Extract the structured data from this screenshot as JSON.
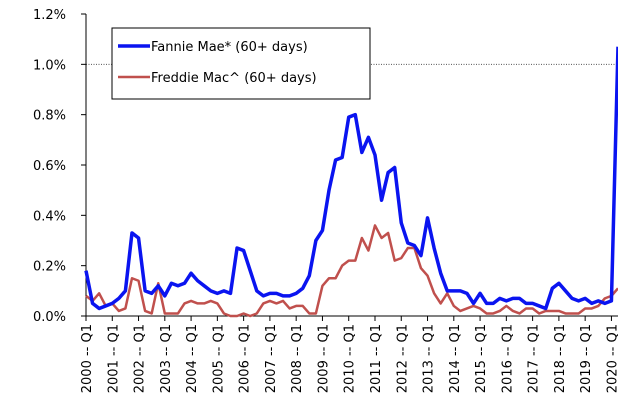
{
  "chart_data": {
    "type": "line",
    "categories": [
      "2000 -- Q1",
      null,
      null,
      null,
      "2001 -- Q1",
      null,
      null,
      null,
      "2002 -- Q1",
      null,
      null,
      null,
      "2003 -- Q1",
      null,
      null,
      null,
      "2004 -- Q1",
      null,
      null,
      null,
      "2005 -- Q1",
      null,
      null,
      null,
      "2006 -- Q1",
      null,
      null,
      null,
      "2007 -- Q1",
      null,
      null,
      null,
      "2008 -- Q1",
      null,
      null,
      null,
      "2009 -- Q1",
      null,
      null,
      null,
      "2010 -- Q1",
      null,
      null,
      null,
      "2011 -- Q1",
      null,
      null,
      null,
      "2012 -- Q1",
      null,
      null,
      null,
      "2013 -- Q1",
      null,
      null,
      null,
      "2014 -- Q1",
      null,
      null,
      null,
      "2015 -- Q1",
      null,
      null,
      null,
      "2016 -- Q1",
      null,
      null,
      null,
      "2017 -- Q1",
      null,
      null,
      null,
      "2018 -- Q1",
      null,
      null,
      null,
      "2019 -- Q1",
      null,
      null,
      null,
      "2020 -- Q1",
      null
    ],
    "series": [
      {
        "name": "Fannie Mae* (60+ days)",
        "color": "#0a14f0",
        "values": [
          0.18,
          0.05,
          0.03,
          0.04,
          0.05,
          0.07,
          0.1,
          0.33,
          0.31,
          0.1,
          0.09,
          0.12,
          0.08,
          0.13,
          0.12,
          0.13,
          0.17,
          0.14,
          0.12,
          0.1,
          0.09,
          0.1,
          0.09,
          0.27,
          0.26,
          0.18,
          0.1,
          0.08,
          0.09,
          0.09,
          0.08,
          0.08,
          0.09,
          0.11,
          0.16,
          0.3,
          0.34,
          0.5,
          0.62,
          0.63,
          0.79,
          0.8,
          0.65,
          0.71,
          0.64,
          0.46,
          0.57,
          0.59,
          0.37,
          0.29,
          0.28,
          0.24,
          0.39,
          0.27,
          0.17,
          0.1,
          0.1,
          0.1,
          0.09,
          0.05,
          0.09,
          0.05,
          0.05,
          0.07,
          0.06,
          0.07,
          0.07,
          0.05,
          0.05,
          0.04,
          0.03,
          0.11,
          0.13,
          0.1,
          0.07,
          0.06,
          0.07,
          0.05,
          0.06,
          0.05,
          0.06,
          1.07
        ]
      },
      {
        "name": "Freddie Mac^ (60+ days)",
        "color": "#c0504d",
        "values": [
          0.08,
          0.06,
          0.09,
          0.04,
          0.05,
          0.02,
          0.03,
          0.15,
          0.14,
          0.02,
          0.01,
          0.13,
          0.01,
          0.01,
          0.01,
          0.05,
          0.06,
          0.05,
          0.05,
          0.06,
          0.05,
          0.01,
          0.0,
          0.0,
          0.01,
          0.0,
          0.01,
          0.05,
          0.06,
          0.05,
          0.06,
          0.03,
          0.04,
          0.04,
          0.01,
          0.01,
          0.12,
          0.15,
          0.15,
          0.2,
          0.22,
          0.22,
          0.31,
          0.26,
          0.36,
          0.31,
          0.33,
          0.22,
          0.23,
          0.27,
          0.27,
          0.19,
          0.16,
          0.09,
          0.05,
          0.09,
          0.04,
          0.02,
          0.03,
          0.04,
          0.03,
          0.01,
          0.01,
          0.02,
          0.04,
          0.02,
          0.01,
          0.03,
          0.03,
          0.01,
          0.02,
          0.02,
          0.02,
          0.01,
          0.01,
          0.01,
          0.03,
          0.03,
          0.04,
          0.07,
          0.08,
          0.11
        ]
      }
    ],
    "ylim": [
      0,
      1.2
    ],
    "yticks": [
      {
        "value": 0,
        "label": "0.0%"
      },
      {
        "value": 0.2,
        "label": "0.2%"
      },
      {
        "value": 0.4,
        "label": "0.4%"
      },
      {
        "value": 0.6,
        "label": "0.6%"
      },
      {
        "value": 0.8,
        "label": "0.8%"
      },
      {
        "value": 1.0,
        "label": "1.0%"
      },
      {
        "value": 1.2,
        "label": "1.2%"
      }
    ],
    "reference_line": 1.0,
    "legend": "upper left"
  }
}
